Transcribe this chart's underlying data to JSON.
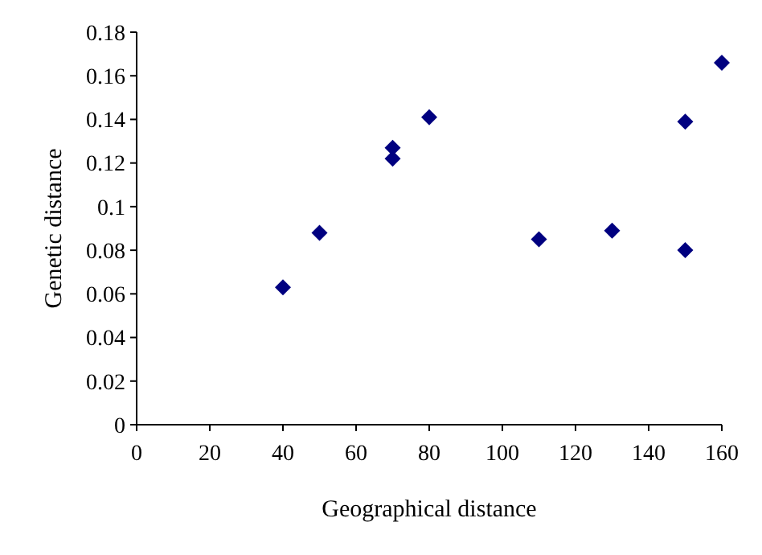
{
  "chart_data": {
    "type": "scatter",
    "xlabel": "Geographical distance",
    "ylabel": "Genetic distance",
    "x": [
      40,
      50,
      70,
      70,
      80,
      110,
      130,
      150,
      150,
      160
    ],
    "series": [
      {
        "color": "#000080",
        "values": [
          0.063,
          0.088,
          0.127,
          0.122,
          0.141,
          0.085,
          0.089,
          0.139,
          0.08,
          0.166
        ]
      }
    ],
    "xlim": [
      0,
      160
    ],
    "xticks": [
      0,
      20,
      40,
      60,
      80,
      100,
      120,
      140,
      160
    ],
    "ylim": [
      0,
      0.18
    ],
    "yticks": [
      0,
      0.02,
      0.04,
      0.06,
      0.08,
      0.1,
      0.12,
      0.14,
      0.16,
      0.18
    ],
    "marker": "diamond",
    "grid": false
  }
}
